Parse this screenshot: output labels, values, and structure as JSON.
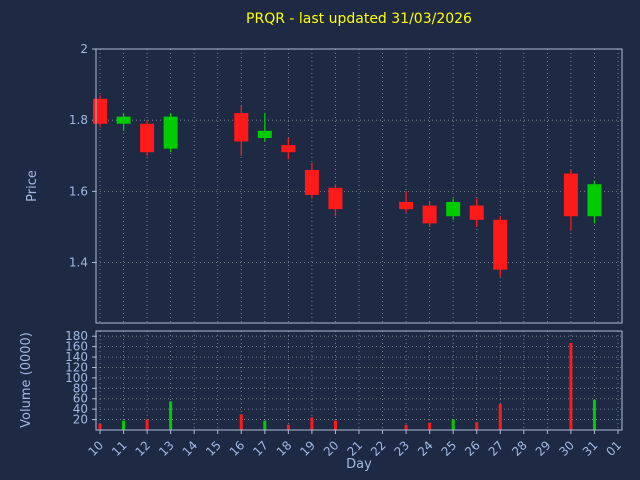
{
  "chart_data": {
    "type": "candlestick",
    "title": "PRQR - last updated 31/03/2026",
    "xlabel": "Day",
    "price_ylabel": "Price",
    "volume_ylabel": "Volume (0000)",
    "price_ylim": [
      1.23,
      2.0
    ],
    "volume_ylim": [
      0,
      190
    ],
    "price_yticks": [
      1.4,
      1.6,
      1.8,
      2
    ],
    "volume_yticks": [
      20,
      40,
      60,
      80,
      100,
      120,
      140,
      160,
      180
    ],
    "x_ticklabels": [
      "10",
      "11",
      "12",
      "13",
      "14",
      "15",
      "16",
      "17",
      "18",
      "19",
      "20",
      "21",
      "22",
      "23",
      "24",
      "25",
      "26",
      "27",
      "28",
      "29",
      "30",
      "31",
      "01"
    ],
    "grid": "dotted",
    "legend": "none",
    "colors": {
      "up": "#00cc00",
      "down": "#ff1a1a",
      "background": "#1e2a44",
      "tick_label": "#a3b8e0",
      "title": "#ffff00",
      "grid": "#ffffff",
      "spine": "#aebcd8"
    },
    "candles": [
      {
        "day": "10",
        "open": 1.86,
        "high": 1.87,
        "low": 1.78,
        "close": 1.79,
        "volume": 12
      },
      {
        "day": "11",
        "open": 1.79,
        "high": 1.82,
        "low": 1.77,
        "close": 1.81,
        "volume": 18
      },
      {
        "day": "12",
        "open": 1.79,
        "high": 1.8,
        "low": 1.7,
        "close": 1.71,
        "volume": 20
      },
      {
        "day": "13",
        "open": 1.72,
        "high": 1.82,
        "low": 1.71,
        "close": 1.81,
        "volume": 55
      },
      {
        "day": "16",
        "open": 1.82,
        "high": 1.84,
        "low": 1.7,
        "close": 1.74,
        "volume": 30
      },
      {
        "day": "17",
        "open": 1.75,
        "high": 1.82,
        "low": 1.74,
        "close": 1.77,
        "volume": 18
      },
      {
        "day": "18",
        "open": 1.73,
        "high": 1.75,
        "low": 1.69,
        "close": 1.71,
        "volume": 10
      },
      {
        "day": "19",
        "open": 1.66,
        "high": 1.68,
        "low": 1.58,
        "close": 1.59,
        "volume": 24
      },
      {
        "day": "20",
        "open": 1.61,
        "high": 1.62,
        "low": 1.53,
        "close": 1.55,
        "volume": 18
      },
      {
        "day": "23",
        "open": 1.57,
        "high": 1.6,
        "low": 1.54,
        "close": 1.55,
        "volume": 10
      },
      {
        "day": "24",
        "open": 1.56,
        "high": 1.57,
        "low": 1.5,
        "close": 1.51,
        "volume": 14
      },
      {
        "day": "25",
        "open": 1.53,
        "high": 1.58,
        "low": 1.52,
        "close": 1.57,
        "volume": 20
      },
      {
        "day": "26",
        "open": 1.56,
        "high": 1.58,
        "low": 1.5,
        "close": 1.52,
        "volume": 15
      },
      {
        "day": "27",
        "open": 1.52,
        "high": 1.53,
        "low": 1.36,
        "close": 1.38,
        "volume": 50
      },
      {
        "day": "30",
        "open": 1.65,
        "high": 1.66,
        "low": 1.49,
        "close": 1.53,
        "volume": 167
      },
      {
        "day": "31",
        "open": 1.53,
        "high": 1.63,
        "low": 1.51,
        "close": 1.62,
        "volume": 58
      }
    ]
  }
}
